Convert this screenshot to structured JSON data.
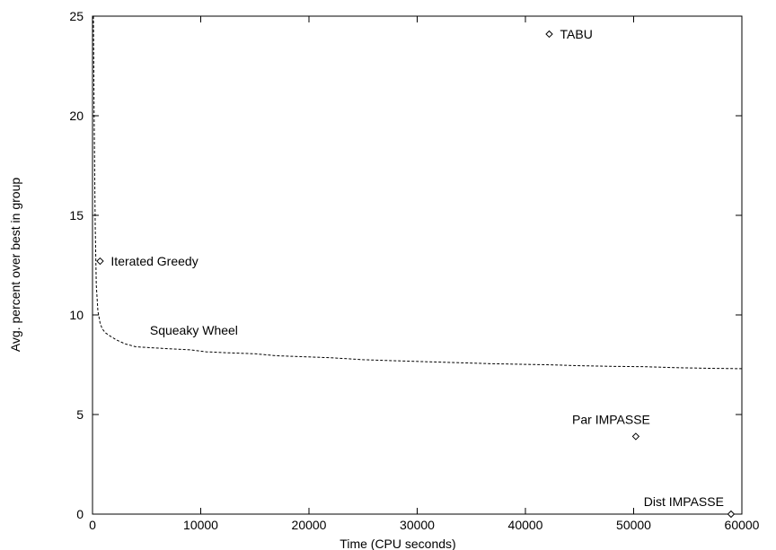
{
  "chart_data": {
    "type": "line",
    "title": "",
    "xlabel": "Time (CPU seconds)",
    "ylabel": "Avg. percent over best in group",
    "xlim": [
      0,
      60000
    ],
    "ylim": [
      0,
      25
    ],
    "grid": false,
    "legend": "none",
    "x_ticks": [
      0,
      10000,
      20000,
      30000,
      40000,
      50000,
      60000
    ],
    "y_ticks": [
      0,
      5,
      10,
      15,
      20,
      25
    ],
    "series": [
      {
        "name": "Squeaky Wheel",
        "style": "dashed",
        "color": "#000000",
        "x": [
          80,
          150,
          250,
          350,
          500,
          700,
          900,
          1200,
          1600,
          2200,
          3000,
          4000,
          5500,
          7000,
          9000,
          10500,
          12500,
          15000,
          17000,
          19500,
          22000,
          25000,
          28000,
          31000,
          34000,
          37000,
          40000,
          42000,
          45000,
          48000,
          51000,
          54000,
          57000,
          60000
        ],
        "y": [
          25,
          20,
          14.5,
          11.5,
          10.2,
          9.6,
          9.3,
          9.1,
          8.95,
          8.75,
          8.55,
          8.4,
          8.35,
          8.3,
          8.25,
          8.15,
          8.1,
          8.05,
          7.95,
          7.9,
          7.85,
          7.75,
          7.7,
          7.65,
          7.6,
          7.55,
          7.52,
          7.5,
          7.45,
          7.42,
          7.4,
          7.35,
          7.32,
          7.3
        ]
      }
    ],
    "points": [
      {
        "name": "TABU",
        "x": 42200,
        "y": 24.1
      },
      {
        "name": "Iterated Greedy",
        "x": 700,
        "y": 12.7
      },
      {
        "name": "Par IMPASSE",
        "x": 50200,
        "y": 3.9
      },
      {
        "name": "Dist IMPASSE",
        "x": 59000,
        "y": 0
      }
    ]
  }
}
